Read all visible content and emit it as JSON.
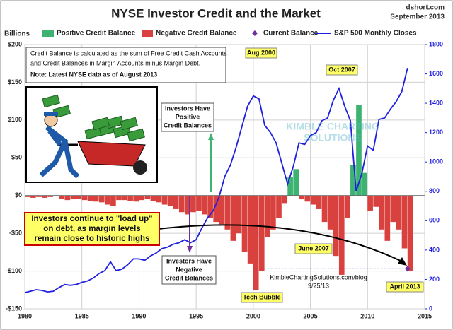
{
  "chart_data": {
    "type": "bar",
    "title": "NYSE Investor Credit and the Market",
    "source": [
      "dshort.com",
      "September 2013"
    ],
    "y_axis_label": "Billions",
    "xlim": [
      1980,
      2015
    ],
    "xticks": [
      1980,
      1985,
      1990,
      1995,
      2000,
      2005,
      2010,
      2015
    ],
    "ylim": [
      -150,
      200
    ],
    "yticks": [
      {
        "value": -150,
        "label": "-$150"
      },
      {
        "value": -100,
        "label": "-$100"
      },
      {
        "value": -50,
        "label": "-$50"
      },
      {
        "value": 0,
        "label": "$0"
      },
      {
        "value": 50,
        "label": "$50"
      },
      {
        "value": 100,
        "label": "$100"
      },
      {
        "value": 150,
        "label": "$150"
      },
      {
        "value": 200,
        "label": "$200"
      }
    ],
    "y2lim": [
      0,
      1800
    ],
    "y2ticks": [
      0,
      200,
      400,
      600,
      800,
      1000,
      1200,
      1400,
      1600,
      1800
    ],
    "grid": true,
    "x": [
      1980,
      1980.5,
      1981,
      1981.5,
      1982,
      1982.5,
      1983,
      1983.5,
      1984,
      1984.5,
      1985,
      1985.5,
      1986,
      1986.5,
      1987,
      1987.5,
      1988,
      1988.5,
      1989,
      1989.5,
      1990,
      1990.5,
      1991,
      1991.5,
      1992,
      1992.5,
      1993,
      1993.5,
      1994,
      1994.5,
      1995,
      1995.5,
      1996,
      1996.5,
      1997,
      1997.5,
      1998,
      1998.5,
      1999,
      1999.5,
      2000,
      2000.5,
      2001,
      2001.5,
      2002,
      2002.5,
      2003,
      2003.5,
      2004,
      2004.5,
      2005,
      2005.5,
      2006,
      2006.5,
      2007,
      2007.5,
      2008,
      2008.5,
      2009,
      2009.5,
      2010,
      2010.5,
      2011,
      2011.5,
      2012,
      2012.5,
      2013,
      2013.5
    ],
    "series": [
      {
        "name": "Positive Credit Balance",
        "type": "bar",
        "color": "#3cb371",
        "values": [
          null,
          null,
          null,
          null,
          null,
          null,
          null,
          null,
          null,
          null,
          null,
          null,
          null,
          null,
          null,
          null,
          null,
          null,
          null,
          null,
          null,
          null,
          null,
          null,
          null,
          null,
          null,
          null,
          null,
          null,
          null,
          null,
          null,
          null,
          null,
          null,
          null,
          null,
          null,
          null,
          null,
          null,
          null,
          null,
          null,
          null,
          25,
          35,
          null,
          null,
          null,
          null,
          null,
          null,
          null,
          null,
          null,
          40,
          120,
          30,
          null,
          null,
          null,
          null,
          null,
          null,
          null,
          null
        ]
      },
      {
        "name": "Negative Credit Balance",
        "type": "bar",
        "color": "#d9413e",
        "values": [
          -2,
          -3,
          -2,
          -3,
          -2,
          -1,
          -4,
          -6,
          -5,
          -4,
          -6,
          -7,
          -8,
          -9,
          -12,
          -14,
          -6,
          -6,
          -7,
          -8,
          -6,
          -5,
          -7,
          -9,
          -12,
          -14,
          -18,
          -22,
          -25,
          -22,
          -20,
          -25,
          -30,
          -35,
          -38,
          -45,
          -60,
          -50,
          -75,
          -90,
          -125,
          -100,
          -55,
          -45,
          -30,
          -10,
          null,
          null,
          -5,
          -8,
          -12,
          -18,
          -35,
          -45,
          -80,
          -105,
          -30,
          null,
          null,
          null,
          -20,
          -15,
          -45,
          -60,
          -35,
          -45,
          -70,
          -100
        ]
      },
      {
        "name": "Current Balance",
        "type": "scatter",
        "color": "#7030a0",
        "x": [
          2013.5
        ],
        "values": [
          -97
        ]
      },
      {
        "name": "S&P 500 Monthly Closes",
        "type": "line",
        "color": "#1f1fe0",
        "axis": "y2",
        "values": [
          110,
          120,
          130,
          125,
          115,
          120,
          145,
          165,
          160,
          165,
          180,
          190,
          210,
          240,
          260,
          320,
          260,
          270,
          300,
          340,
          340,
          330,
          360,
          380,
          410,
          420,
          440,
          450,
          470,
          450,
          470,
          550,
          620,
          670,
          760,
          900,
          980,
          1100,
          1240,
          1380,
          1450,
          1430,
          1250,
          1200,
          1130,
          990,
          850,
          970,
          1130,
          1120,
          1180,
          1200,
          1280,
          1300,
          1420,
          1500,
          1380,
          1280,
          800,
          920,
          1110,
          1080,
          1290,
          1300,
          1360,
          1410,
          1480,
          1640
        ]
      }
    ],
    "info_box": [
      "Credit Balance is calculated as the sum of Free Credit Cash Accounts",
      "and Credit Balances in Margin Accounts minus Margin Debt.",
      "Note: Latest NYSE data as of August 2013"
    ],
    "annotations": [
      {
        "lines": [
          "Aug 2000"
        ]
      },
      {
        "lines": [
          "Oct 2007"
        ]
      },
      {
        "lines": [
          "June 2007"
        ]
      },
      {
        "lines": [
          "Tech Bubble"
        ]
      },
      {
        "lines": [
          "April 2013"
        ]
      },
      {
        "lines": [
          "Investors Have",
          "Positive",
          "Credit Balances"
        ]
      },
      {
        "lines": [
          "Investors Have",
          "Negative",
          "Credit Balances"
        ]
      },
      {
        "lines": [
          "Investors continue to \"load up\"",
          "on debt, as margin levels",
          "remain close to historic highs"
        ]
      },
      {
        "lines": [
          "KimbleChartingSolutions.com/blog",
          "9/25/13"
        ]
      },
      {
        "lines": [
          "KIMBLE CHARTING",
          "SOLUTIONS"
        ]
      }
    ]
  }
}
